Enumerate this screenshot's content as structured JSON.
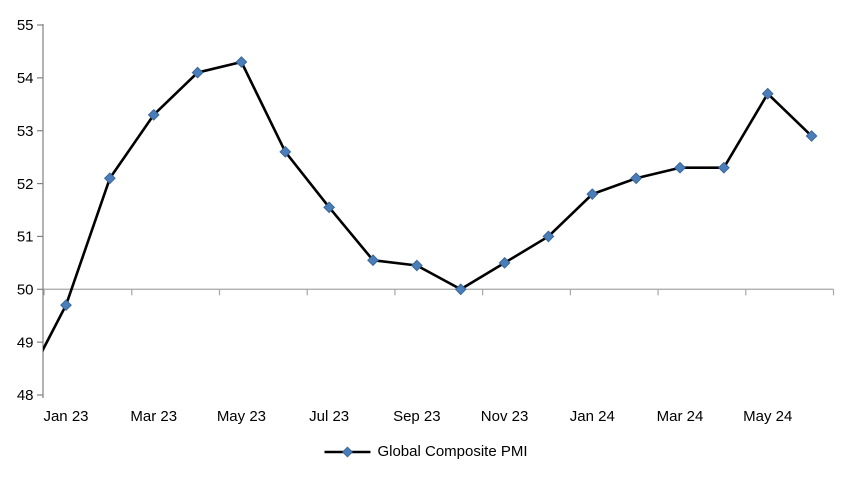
{
  "chart_data": {
    "type": "line",
    "title": "",
    "xlabel": "",
    "ylabel": "",
    "x": [
      "Dec 22",
      "Jan 23",
      "Feb 23",
      "Mar 23",
      "Apr 23",
      "May 23",
      "Jun 23",
      "Jul 23",
      "Aug 23",
      "Sep 23",
      "Oct 23",
      "Nov 23",
      "Dec 23",
      "Jan 24",
      "Feb 24",
      "Mar 24",
      "Apr 24",
      "May 24",
      "Jun 24"
    ],
    "series": [
      {
        "name": "Global Composite PMI",
        "values": [
          48.1,
          49.7,
          52.1,
          53.3,
          54.1,
          54.3,
          52.6,
          51.55,
          50.55,
          50.45,
          50.0,
          50.5,
          51.0,
          51.8,
          52.1,
          52.3,
          52.3,
          53.7,
          52.9
        ],
        "line_color": "#000000",
        "marker": "diamond",
        "marker_color": "#4A7EBB",
        "marker_edge_color": "#3A6796"
      }
    ],
    "first_point_offscreen": true,
    "x_tick_labels": [
      "Jan 23",
      "Mar 23",
      "May 23",
      "Jul 23",
      "Sep 23",
      "Nov 23",
      "Jan 24",
      "Mar 24",
      "May 24"
    ],
    "yticks": [
      55,
      54,
      53,
      52,
      51,
      50,
      49,
      48
    ],
    "ylim": [
      48,
      55
    ],
    "reference_line_value": 50,
    "grid": "single horizontal category-axis line at 50",
    "legend_position": "bottom-center",
    "axis_color": "#808080",
    "gridline_color": "#A6A6A6",
    "background": "#FFFFFF"
  }
}
